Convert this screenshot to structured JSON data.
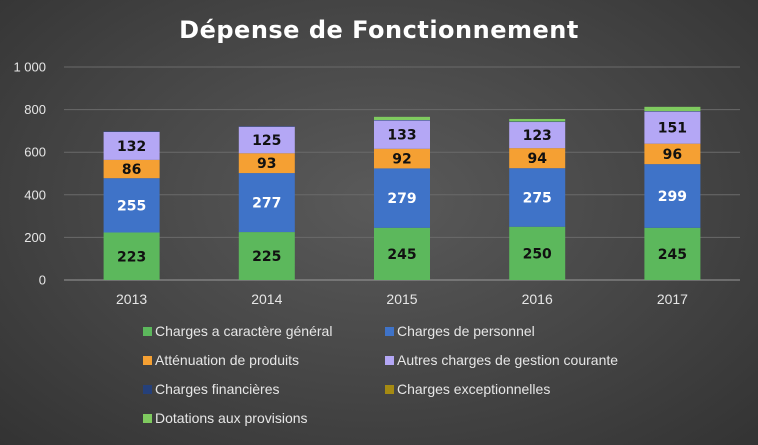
{
  "chart_data": {
    "type": "bar",
    "stacked": true,
    "title": "Dépense de Fonctionnement",
    "xlabel": "",
    "ylabel": "",
    "categories": [
      "2013",
      "2014",
      "2015",
      "2016",
      "2017"
    ],
    "ylim": [
      0,
      1000
    ],
    "yticks": [
      0,
      200,
      400,
      600,
      800,
      1000
    ],
    "ytick_labels": [
      "0",
      "200",
      "400",
      "600",
      "800",
      "1 000"
    ],
    "grid": true,
    "legend_position": "bottom",
    "series": [
      {
        "name": "Charges a caractère général",
        "color": "#5cb85c",
        "values": [
          223,
          225,
          245,
          250,
          245
        ],
        "show_labels": true,
        "label_color": "#111111"
      },
      {
        "name": "Charges de personnel",
        "color": "#3f73c8",
        "values": [
          255,
          277,
          279,
          275,
          299
        ],
        "show_labels": true,
        "label_color": "#ffffff"
      },
      {
        "name": "Atténuation de produits",
        "color": "#f5a033",
        "values": [
          86,
          93,
          92,
          94,
          96
        ],
        "show_labels": true,
        "label_color": "#111111"
      },
      {
        "name": "Autres charges de gestion courante",
        "color": "#b4a7f5",
        "values": [
          132,
          125,
          133,
          123,
          151
        ],
        "show_labels": true,
        "label_color": "#111111"
      },
      {
        "name": "Charges financières",
        "color": "#25407a",
        "values": [
          2,
          2,
          2,
          2,
          2
        ],
        "show_labels": false,
        "label_color": "#ffffff"
      },
      {
        "name": "Charges exceptionnelles",
        "color": "#a58a12",
        "values": [
          0,
          0,
          0,
          0,
          0
        ],
        "show_labels": false,
        "label_color": "#ffffff"
      },
      {
        "name": "Dotations aux provisions",
        "color": "#7fca5f",
        "values": [
          0,
          0,
          15,
          12,
          20
        ],
        "show_labels": false,
        "label_color": "#111111"
      }
    ]
  }
}
